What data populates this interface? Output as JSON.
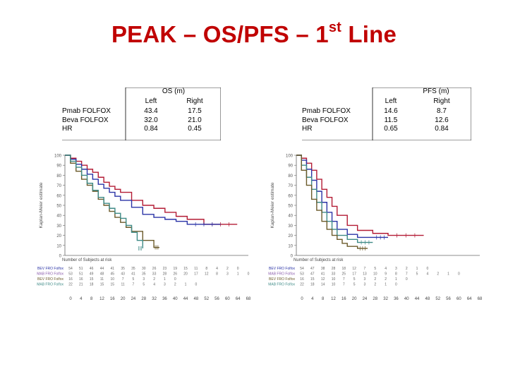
{
  "title": {
    "main": "PEAK – OS/PFS – 1",
    "sup": "st",
    "tail": " Line"
  },
  "colors": {
    "title": "#c00000",
    "red": "#b31b34",
    "blue": "#2a33a6",
    "teal": "#3e8a86",
    "olive": "#6b5a2a",
    "purple": "#8a5bab"
  },
  "os_table": {
    "header": "OS (m)",
    "col_left": "Left",
    "col_right": "Right",
    "rows": [
      {
        "label": "Pmab FOLFOX",
        "left": "43.4",
        "right": "17.5"
      },
      {
        "label": "Beva FOLFOX",
        "left": "32.0",
        "right": "21.0"
      },
      {
        "label": "HR",
        "left": "0.84",
        "right": "0.45"
      }
    ]
  },
  "pfs_table": {
    "header": "PFS (m)",
    "col_left": "Left",
    "col_right": "Right",
    "rows": [
      {
        "label": "Pmab FOLFOX",
        "left": "14.6",
        "right": "8.7"
      },
      {
        "label": "Beva FOLFOX",
        "left": "11.5",
        "right": "12.6"
      },
      {
        "label": "HR",
        "left": "0.65",
        "right": "0.84"
      }
    ]
  },
  "chart_data": [
    {
      "type": "line",
      "title": "OS",
      "ylabel": "Kaplan-Meier estimate",
      "xlim": [
        0,
        66
      ],
      "ylim": [
        0,
        100
      ],
      "x_ticks": [
        "0",
        "4",
        "8",
        "12",
        "16",
        "20",
        "24",
        "28",
        "32",
        "36",
        "40",
        "44",
        "48",
        "52",
        "56",
        "60",
        "64",
        "68"
      ],
      "y_ticks": [
        "0",
        "10",
        "20",
        "30",
        "40",
        "50",
        "60",
        "70",
        "80",
        "90",
        "100"
      ],
      "risk_title": "Number of Subjects at risk",
      "series": [
        {
          "name": "Pmab FOLFOX (left)",
          "color": "red",
          "x": [
            0,
            2,
            4,
            6,
            8,
            10,
            12,
            14,
            16,
            18,
            20,
            24,
            28,
            32,
            36,
            40,
            44,
            50,
            62
          ],
          "y": [
            100,
            97,
            94,
            90,
            86,
            83,
            78,
            73,
            69,
            66,
            63,
            55,
            50,
            47,
            43,
            39,
            36,
            31,
            31
          ]
        },
        {
          "name": "Beva FOLFOX (left)",
          "color": "blue",
          "x": [
            0,
            2,
            4,
            6,
            8,
            10,
            12,
            14,
            16,
            18,
            20,
            24,
            28,
            32,
            36,
            40,
            44,
            56
          ],
          "y": [
            100,
            96,
            91,
            86,
            81,
            76,
            71,
            67,
            63,
            59,
            55,
            48,
            41,
            38,
            36,
            34,
            31,
            31
          ]
        },
        {
          "name": "Pmab FOLFOX (right)",
          "color": "olive",
          "x": [
            0,
            2,
            4,
            6,
            8,
            10,
            12,
            14,
            16,
            18,
            20,
            22,
            24,
            28,
            32,
            34
          ],
          "y": [
            100,
            92,
            84,
            76,
            70,
            64,
            56,
            50,
            44,
            38,
            33,
            28,
            24,
            15,
            8,
            8
          ]
        },
        {
          "name": "Beva FOLFOX (right)",
          "color": "teal",
          "x": [
            0,
            2,
            4,
            6,
            8,
            10,
            12,
            14,
            16,
            18,
            20,
            22,
            24,
            26,
            28
          ],
          "y": [
            100,
            94,
            88,
            80,
            72,
            65,
            58,
            52,
            47,
            42,
            37,
            30,
            23,
            15,
            7
          ]
        }
      ],
      "risk_rows": [
        {
          "label": "BEV FRO Folfox",
          "values": [
            "54",
            "51",
            "46",
            "44",
            "41",
            "35",
            "35",
            "30",
            "26",
            "23",
            "19",
            "15",
            "11",
            "8",
            "4",
            "2",
            "0",
            ""
          ]
        },
        {
          "label": "PMAB FRO Folfox",
          "values": [
            "53",
            "51",
            "49",
            "48",
            "45",
            "43",
            "41",
            "35",
            "33",
            "28",
            "26",
            "20",
            "17",
            "12",
            "8",
            "3",
            "1",
            "0"
          ]
        },
        {
          "label": "BEV FRO Folfox",
          "values": [
            "16",
            "16",
            "15",
            "11",
            "10",
            "7",
            "5",
            "3",
            "2",
            "1",
            "0",
            "",
            "",
            "",
            "",
            "",
            "",
            ""
          ]
        },
        {
          "label": "PMAB FRO Folfox",
          "values": [
            "22",
            "21",
            "18",
            "15",
            "15",
            "11",
            "7",
            "5",
            "4",
            "3",
            "2",
            "1",
            "0",
            "",
            "",
            "",
            "",
            ""
          ]
        }
      ]
    },
    {
      "type": "line",
      "title": "PFS",
      "ylabel": "Kaplan-Meier estimate",
      "xlim": [
        0,
        72
      ],
      "ylim": [
        0,
        100
      ],
      "x_ticks": [
        "0",
        "4",
        "8",
        "12",
        "16",
        "20",
        "24",
        "28",
        "32",
        "36",
        "40",
        "44",
        "48",
        "52",
        "56",
        "60",
        "64",
        "68"
      ],
      "y_ticks": [
        "0",
        "10",
        "20",
        "30",
        "40",
        "50",
        "60",
        "70",
        "80",
        "90",
        "100"
      ],
      "risk_title": "Number of Subjects at risk",
      "series": [
        {
          "name": "Pmab FOLFOX (left)",
          "color": "red",
          "x": [
            0,
            2,
            4,
            6,
            8,
            10,
            12,
            14,
            16,
            20,
            24,
            30,
            36,
            50
          ],
          "y": [
            100,
            97,
            92,
            85,
            76,
            66,
            58,
            49,
            40,
            30,
            25,
            22,
            20,
            20
          ]
        },
        {
          "name": "Beva FOLFOX (left)",
          "color": "blue",
          "x": [
            0,
            2,
            4,
            6,
            8,
            10,
            12,
            14,
            16,
            20,
            24,
            30,
            36
          ],
          "y": [
            100,
            95,
            86,
            75,
            64,
            53,
            43,
            34,
            26,
            21,
            18,
            18,
            18
          ]
        },
        {
          "name": "Beva FOLFOX (right)",
          "color": "teal",
          "x": [
            0,
            2,
            4,
            6,
            8,
            10,
            12,
            14,
            16,
            20,
            24,
            30
          ],
          "y": [
            100,
            90,
            78,
            66,
            53,
            43,
            34,
            26,
            20,
            16,
            13,
            13
          ]
        },
        {
          "name": "Pmab FOLFOX (right)",
          "color": "olive",
          "x": [
            0,
            2,
            4,
            6,
            8,
            10,
            12,
            14,
            16,
            18,
            20,
            24,
            28
          ],
          "y": [
            100,
            85,
            70,
            56,
            45,
            34,
            26,
            20,
            16,
            12,
            9,
            7,
            7
          ]
        }
      ],
      "risk_rows": [
        {
          "label": "BEV FRO Folfox",
          "values": [
            "54",
            "47",
            "38",
            "28",
            "18",
            "12",
            "7",
            "5",
            "4",
            "3",
            "2",
            "1",
            "0",
            "",
            "",
            "",
            "",
            ""
          ]
        },
        {
          "label": "PMAB FRO Folfox",
          "values": [
            "53",
            "47",
            "41",
            "33",
            "25",
            "17",
            "13",
            "10",
            "9",
            "8",
            "7",
            "5",
            "4",
            "2",
            "1",
            "0",
            "",
            ""
          ]
        },
        {
          "label": "BEV FRO Folfox",
          "values": [
            "16",
            "15",
            "12",
            "10",
            "7",
            "5",
            "3",
            "2",
            "2",
            "1",
            "0",
            "",
            "",
            "",
            "",
            "",
            "",
            ""
          ]
        },
        {
          "label": "PMAB FRO Folfox",
          "values": [
            "22",
            "18",
            "14",
            "10",
            "7",
            "5",
            "3",
            "2",
            "1",
            "0",
            "",
            "",
            "",
            "",
            "",
            "",
            "",
            ""
          ]
        }
      ]
    }
  ]
}
